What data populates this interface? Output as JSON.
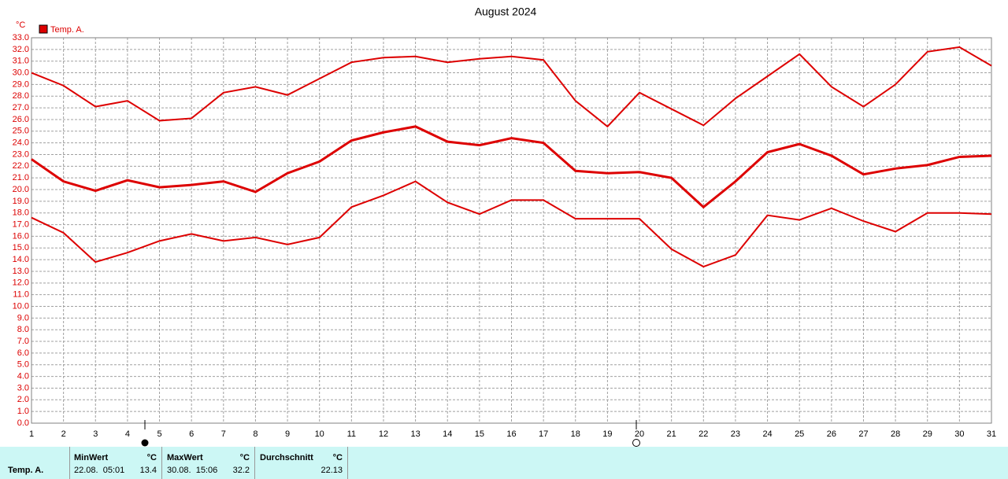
{
  "chart_data": {
    "type": "line",
    "title": "August 2024",
    "y_label": "°C",
    "legend": {
      "label": "Temp. A.",
      "color": "#dd0000"
    },
    "x": [
      1,
      2,
      3,
      4,
      5,
      6,
      7,
      8,
      9,
      10,
      11,
      12,
      13,
      14,
      15,
      16,
      17,
      18,
      19,
      20,
      21,
      22,
      23,
      24,
      25,
      26,
      27,
      28,
      29,
      30,
      31
    ],
    "xlim": [
      1,
      31
    ],
    "xticks": [
      1,
      2,
      3,
      4,
      5,
      6,
      7,
      8,
      9,
      10,
      11,
      12,
      13,
      14,
      15,
      16,
      17,
      18,
      19,
      20,
      21,
      22,
      23,
      24,
      25,
      26,
      27,
      28,
      29,
      30,
      31
    ],
    "ylim": [
      0,
      33
    ],
    "yticks": [
      {
        "value": 0,
        "label": "0.0"
      },
      {
        "value": 1,
        "label": "1.0"
      },
      {
        "value": 2,
        "label": "2.0"
      },
      {
        "value": 3,
        "label": "3.0"
      },
      {
        "value": 4,
        "label": "4.0"
      },
      {
        "value": 5,
        "label": "5.0"
      },
      {
        "value": 6,
        "label": "6.0"
      },
      {
        "value": 7,
        "label": "7.0"
      },
      {
        "value": 8,
        "label": "8.0"
      },
      {
        "value": 9,
        "label": "9.0"
      },
      {
        "value": 10,
        "label": "10.0"
      },
      {
        "value": 11,
        "label": "11.0"
      },
      {
        "value": 12,
        "label": "12.0"
      },
      {
        "value": 13,
        "label": "13.0"
      },
      {
        "value": 14,
        "label": "14.0"
      },
      {
        "value": 15,
        "label": "15.0"
      },
      {
        "value": 16,
        "label": "16.0"
      },
      {
        "value": 17,
        "label": "17.0"
      },
      {
        "value": 18,
        "label": "18.0"
      },
      {
        "value": 19,
        "label": "19.0"
      },
      {
        "value": 20,
        "label": "20.0"
      },
      {
        "value": 21,
        "label": "21.0"
      },
      {
        "value": 22,
        "label": "22.0"
      },
      {
        "value": 23,
        "label": "23.0"
      },
      {
        "value": 24,
        "label": "24.0"
      },
      {
        "value": 25,
        "label": "25.0"
      },
      {
        "value": 26,
        "label": "26.0"
      },
      {
        "value": 27,
        "label": "27.0"
      },
      {
        "value": 28,
        "label": "28.0"
      },
      {
        "value": 29,
        "label": "29.0"
      },
      {
        "value": 30,
        "label": "30.0"
      },
      {
        "value": 31,
        "label": "31.0"
      },
      {
        "value": 32,
        "label": "32.0"
      },
      {
        "value": 33,
        "label": "33.0"
      }
    ],
    "grid": true,
    "series": [
      {
        "color": "#dd0000",
        "width": 2,
        "values": [
          30.0,
          28.9,
          27.1,
          27.6,
          25.9,
          26.1,
          28.3,
          28.8,
          28.1,
          29.5,
          30.9,
          31.3,
          31.4,
          30.9,
          31.2,
          31.4,
          31.1,
          27.6,
          25.4,
          28.3,
          26.9,
          25.5,
          27.8,
          29.7,
          31.6,
          28.8,
          27.1,
          29.0,
          31.8,
          32.2,
          30.6
        ]
      },
      {
        "color": "#dd0000",
        "width": 3,
        "values": [
          22.6,
          20.7,
          19.9,
          20.8,
          20.2,
          20.4,
          20.7,
          19.8,
          21.4,
          22.4,
          24.2,
          24.9,
          25.4,
          24.1,
          23.8,
          24.4,
          24.0,
          21.6,
          21.4,
          21.5,
          21.0,
          18.5,
          20.7,
          23.2,
          23.9,
          22.9,
          21.3,
          21.8,
          22.1,
          22.8,
          22.9
        ]
      },
      {
        "color": "#dd0000",
        "width": 2,
        "values": [
          17.6,
          16.3,
          13.8,
          14.6,
          15.6,
          16.2,
          15.6,
          15.9,
          15.3,
          15.9,
          18.5,
          19.5,
          20.7,
          18.9,
          17.9,
          19.1,
          19.1,
          17.5,
          17.5,
          17.5,
          14.9,
          13.4,
          14.4,
          17.8,
          17.4,
          18.4,
          17.3,
          16.4,
          18.0,
          18.0,
          17.9
        ]
      }
    ]
  },
  "stats": {
    "row_label": "Temp. A.",
    "min": {
      "header": "MinWert",
      "unit": "°C",
      "when": "22.08.  05:01",
      "value": "13.4"
    },
    "max": {
      "header": "MaxWert",
      "unit": "°C",
      "when": "30.08.  15:06",
      "value": "32.2"
    },
    "avg": {
      "header": "Durchschnitt",
      "unit": "°C",
      "value": "22.13"
    }
  }
}
